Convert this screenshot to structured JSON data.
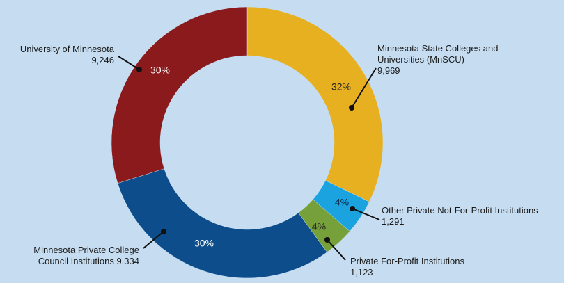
{
  "chart_data": {
    "type": "donut",
    "categories": [
      "Minnesota State Colleges and Universities (MnSCU)",
      "Other Private Not-For-Profit Institutions",
      "Private For-Profit Institutions",
      "Minnesota Private College Council Institutions",
      "University of Minnesota"
    ],
    "values": [
      9969,
      1291,
      1123,
      9334,
      9246
    ],
    "value_labels": [
      "9,969",
      "1,291",
      "1,123",
      "9,334",
      "9,246"
    ],
    "percent_labels": [
      "32%",
      "4%",
      "4%",
      "30%",
      "30%"
    ],
    "colors": [
      "#e6b020",
      "#1ba3df",
      "#76a03a",
      "#0e4d8c",
      "#8a1a1c"
    ]
  }
}
